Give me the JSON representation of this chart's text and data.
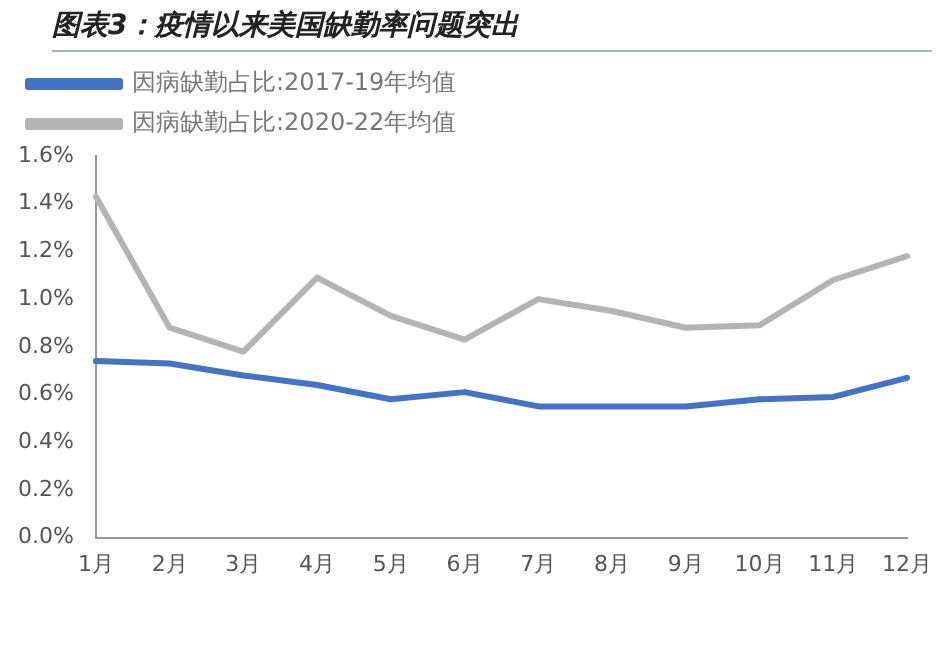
{
  "chart_data": {
    "type": "line",
    "title": "图表3：疫情以来美国缺勤率问题突出",
    "categories": [
      "1月",
      "2月",
      "3月",
      "4月",
      "5月",
      "6月",
      "7月",
      "8月",
      "9月",
      "10月",
      "11月",
      "12月"
    ],
    "series": [
      {
        "name": "因病缺勤占比:2017-19年均值",
        "color": "#4472c4",
        "values": [
          0.74,
          0.73,
          0.68,
          0.64,
          0.58,
          0.61,
          0.55,
          0.55,
          0.55,
          0.58,
          0.59,
          0.67
        ]
      },
      {
        "name": "因病缺勤占比:2020-22年均值",
        "color": "#b4b4b4",
        "values": [
          1.43,
          0.88,
          0.78,
          1.09,
          0.93,
          0.83,
          1.0,
          0.95,
          0.88,
          0.89,
          1.08,
          1.18
        ]
      }
    ],
    "ylim": [
      0,
      1.6
    ],
    "yticks": [
      {
        "value": 0,
        "label": "0.0%"
      },
      {
        "value": 0.2,
        "label": "0.2%"
      },
      {
        "value": 0.4,
        "label": "0.4%"
      },
      {
        "value": 0.6,
        "label": "0.6%"
      },
      {
        "value": 0.8,
        "label": "0.8%"
      },
      {
        "value": 1.0,
        "label": "1.0%"
      },
      {
        "value": 1.2,
        "label": "1.2%"
      },
      {
        "value": 1.4,
        "label": "1.4%"
      },
      {
        "value": 1.6,
        "label": "1.6%"
      }
    ],
    "grid": false,
    "legend": "top",
    "marker": "none",
    "line_style": "solid"
  }
}
